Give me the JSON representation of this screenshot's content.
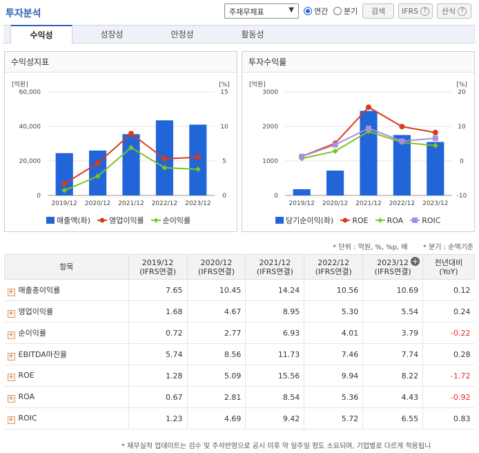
{
  "header": {
    "title": "투자분석",
    "select_value": "주재무제표",
    "radio_annual": "연간",
    "radio_quarter": "분기",
    "search_label": "검색",
    "ifrs_label": "IFRS",
    "formula_label": "산식",
    "help_glyph": "?"
  },
  "tabs": [
    "수익성",
    "성장성",
    "안정성",
    "활동성"
  ],
  "left_panel": {
    "title": "수익성지표",
    "left_unit": "[억원]",
    "right_unit": "[%]",
    "legend": [
      "매출액(좌)",
      "영업이익률",
      "순이익률"
    ]
  },
  "right_panel": {
    "title": "투자수익률",
    "left_unit": "[억원]",
    "right_unit": "[%]",
    "legend": [
      "당기순이익(좌)",
      "ROE",
      "ROA",
      "ROIC"
    ]
  },
  "chart_data": [
    {
      "type": "bar",
      "title": "수익성지표",
      "categories": [
        "2019/12",
        "2020/12",
        "2021/12",
        "2022/12",
        "2023/12"
      ],
      "left_axis": {
        "label": "[억원]",
        "ylim": [
          0,
          60000
        ],
        "ticks": [
          "0",
          "20,000",
          "40,000",
          "60,000"
        ]
      },
      "right_axis": {
        "label": "[%]",
        "ylim": [
          0,
          15
        ],
        "ticks": [
          "0",
          "5",
          "10",
          "15"
        ]
      },
      "series": [
        {
          "name": "매출액(좌)",
          "type": "bar",
          "axis": "left",
          "values": [
            24500,
            26000,
            35500,
            43500,
            41000
          ],
          "color": "#2165d8"
        },
        {
          "name": "영업이익률",
          "type": "line",
          "axis": "right",
          "values": [
            1.68,
            4.67,
            8.95,
            5.3,
            5.54
          ],
          "color": "#d83b1b"
        },
        {
          "name": "순이익률",
          "type": "line",
          "axis": "right",
          "values": [
            0.72,
            2.77,
            6.93,
            4.01,
            3.79
          ],
          "color": "#7cc41f"
        }
      ]
    },
    {
      "type": "bar",
      "title": "투자수익률",
      "categories": [
        "2019/12",
        "2020/12",
        "2021/12",
        "2022/12",
        "2023/12"
      ],
      "left_axis": {
        "label": "[억원]",
        "ylim": [
          0,
          3000
        ],
        "ticks": [
          "0",
          "1000",
          "2000",
          "3000"
        ]
      },
      "right_axis": {
        "label": "[%]",
        "ylim": [
          -10,
          20
        ],
        "ticks": [
          "-10",
          "0",
          "10",
          "20"
        ]
      },
      "series": [
        {
          "name": "당기순이익(좌)",
          "type": "bar",
          "axis": "left",
          "values": [
            180,
            720,
            2450,
            1750,
            1550
          ],
          "color": "#2165d8"
        },
        {
          "name": "ROE",
          "type": "line",
          "axis": "right",
          "values": [
            1.28,
            5.09,
            15.56,
            9.94,
            8.22
          ],
          "color": "#d83b1b"
        },
        {
          "name": "ROA",
          "type": "line",
          "axis": "right",
          "values": [
            0.67,
            2.81,
            8.54,
            5.36,
            4.43
          ],
          "color": "#7cc41f"
        },
        {
          "name": "ROIC",
          "type": "line",
          "axis": "right",
          "values": [
            1.23,
            4.69,
            9.42,
            5.72,
            6.55
          ],
          "color": "#a98ee0"
        }
      ]
    }
  ],
  "notes": {
    "unit": "* 단위 : 억원, %, %p, 배",
    "quarter": "* 분기 : 순액기준"
  },
  "table": {
    "header_item": "항목",
    "columns": [
      [
        "2019/12",
        "(IFRS연결)"
      ],
      [
        "2020/12",
        "(IFRS연결)"
      ],
      [
        "2021/12",
        "(IFRS연결)"
      ],
      [
        "2022/12",
        "(IFRS연결)"
      ],
      [
        "2023/12",
        "(IFRS연결)"
      ],
      [
        "전년대비",
        "(YoY)"
      ]
    ],
    "rows": [
      {
        "name": "매출총이익률",
        "values": [
          "7.65",
          "10.45",
          "14.24",
          "10.56",
          "10.69",
          "0.12"
        ]
      },
      {
        "name": "영업이익률",
        "values": [
          "1.68",
          "4.67",
          "8.95",
          "5.30",
          "5.54",
          "0.24"
        ]
      },
      {
        "name": "순이익률",
        "values": [
          "0.72",
          "2.77",
          "6.93",
          "4.01",
          "3.79",
          "-0.22"
        ]
      },
      {
        "name": "EBITDA마진율",
        "values": [
          "5.74",
          "8.56",
          "11.73",
          "7.46",
          "7.74",
          "0.28"
        ]
      },
      {
        "name": "ROE",
        "values": [
          "1.28",
          "5.09",
          "15.56",
          "9.94",
          "8.22",
          "-1.72"
        ]
      },
      {
        "name": "ROA",
        "values": [
          "0.67",
          "2.81",
          "8.54",
          "5.36",
          "4.43",
          "-0.92"
        ]
      },
      {
        "name": "ROIC",
        "values": [
          "1.23",
          "4.69",
          "9.42",
          "5.72",
          "6.55",
          "0.83"
        ]
      }
    ]
  },
  "footer": "* 재무실적 업데이트는 검수 및 주석반영으로 공시 이후 약 일주일 정도 소요되며, 기업별로 다르게 적용됩니"
}
